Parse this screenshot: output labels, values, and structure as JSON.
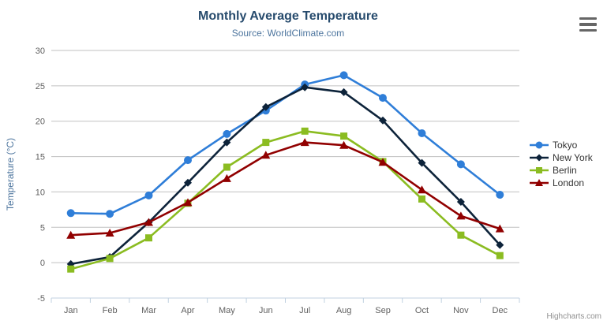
{
  "header": {
    "title": "Monthly Average Temperature",
    "subtitle": "Source: WorldClimate.com"
  },
  "credits": {
    "label": "Highcharts.com"
  },
  "context_menu": {
    "icon": "hamburger-icon"
  },
  "colors": {
    "title": "#274b6d",
    "subtitle": "#4d759e",
    "axis_title": "#4d759e",
    "tick_labels": "#606060",
    "gridline": "#c0c0c0",
    "axis_line": "#c0d0e0",
    "legend_text": "#333333",
    "credits_text": "#909090",
    "menu_icon": "#666666"
  },
  "chart_data": {
    "type": "line",
    "title": "Monthly Average Temperature",
    "subtitle": "Source: WorldClimate.com",
    "xlabel": "",
    "ylabel": "Temperature (°C)",
    "categories": [
      "Jan",
      "Feb",
      "Mar",
      "Apr",
      "May",
      "Jun",
      "Jul",
      "Aug",
      "Sep",
      "Oct",
      "Nov",
      "Dec"
    ],
    "ylim": [
      -5,
      30
    ],
    "ytick_step": 5,
    "yticks": [
      -5,
      0,
      5,
      10,
      15,
      20,
      25,
      30
    ],
    "grid": true,
    "legend_position": "right",
    "series": [
      {
        "name": "Tokyo",
        "color": "#2f7ed8",
        "marker": "circle",
        "values": [
          7.0,
          6.9,
          9.5,
          14.5,
          18.2,
          21.5,
          25.2,
          26.5,
          23.3,
          18.3,
          13.9,
          9.6
        ]
      },
      {
        "name": "New York",
        "color": "#0d233a",
        "marker": "diamond",
        "values": [
          -0.2,
          0.8,
          5.7,
          11.3,
          17.0,
          22.0,
          24.8,
          24.1,
          20.1,
          14.1,
          8.6,
          2.5
        ]
      },
      {
        "name": "Berlin",
        "color": "#8bbc21",
        "marker": "square",
        "values": [
          -0.9,
          0.6,
          3.5,
          8.4,
          13.5,
          17.0,
          18.6,
          17.9,
          14.3,
          9.0,
          3.9,
          1.0
        ]
      },
      {
        "name": "London",
        "color": "#910000",
        "marker": "triangle",
        "values": [
          3.9,
          4.2,
          5.7,
          8.5,
          11.9,
          15.2,
          17.0,
          16.6,
          14.2,
          10.3,
          6.6,
          4.8
        ]
      }
    ]
  }
}
